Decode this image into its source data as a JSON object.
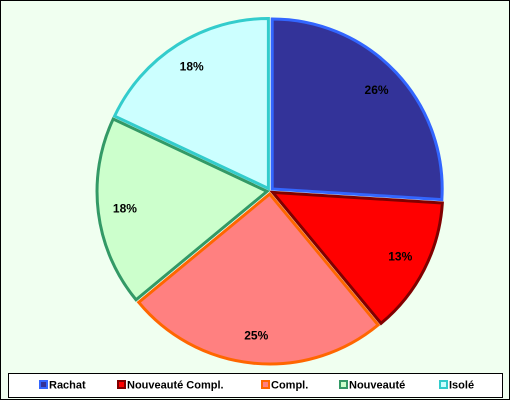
{
  "chart_data": {
    "type": "pie",
    "categories": [
      "Rachat",
      "Nouveauté Compl.",
      "Compl.",
      "Nouveauté",
      "Isolé"
    ],
    "values": [
      26,
      13,
      25,
      18,
      18
    ],
    "value_labels": [
      "26%",
      "13%",
      "25%",
      "18%",
      "18%"
    ],
    "colors": [
      "#333399",
      "#ff0000",
      "#ff8080",
      "#ccffcc",
      "#ccffff"
    ],
    "edge_colors": [
      "#3366ff",
      "#800000",
      "#ff6600",
      "#339966",
      "#33cccc"
    ],
    "legend": "bottom"
  }
}
